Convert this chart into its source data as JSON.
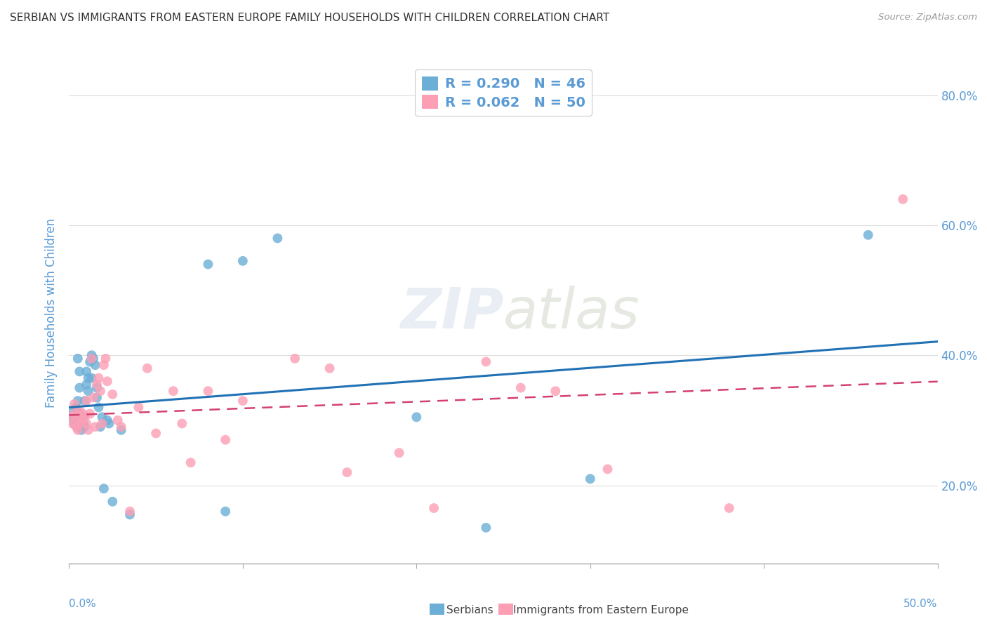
{
  "title": "SERBIAN VS IMMIGRANTS FROM EASTERN EUROPE FAMILY HOUSEHOLDS WITH CHILDREN CORRELATION CHART",
  "source": "Source: ZipAtlas.com",
  "ylabel": "Family Households with Children",
  "watermark": "ZIPatlas",
  "xlim": [
    0.0,
    0.5
  ],
  "ylim": [
    0.08,
    0.85
  ],
  "ytick_vals": [
    0.2,
    0.4,
    0.6,
    0.8
  ],
  "ytick_labels": [
    "20.0%",
    "40.0%",
    "60.0%",
    "80.0%"
  ],
  "serbian_color": "#6baed6",
  "serbian_line_color": "#2171b5",
  "imm_color": "#fc9fb5",
  "imm_line_color": "#d44070",
  "serbian_x": [
    0.001,
    0.002,
    0.003,
    0.003,
    0.004,
    0.004,
    0.005,
    0.005,
    0.005,
    0.006,
    0.006,
    0.006,
    0.007,
    0.007,
    0.008,
    0.008,
    0.009,
    0.009,
    0.01,
    0.01,
    0.011,
    0.011,
    0.012,
    0.013,
    0.013,
    0.014,
    0.015,
    0.016,
    0.016,
    0.017,
    0.018,
    0.019,
    0.02,
    0.022,
    0.023,
    0.025,
    0.03,
    0.035,
    0.08,
    0.09,
    0.1,
    0.12,
    0.2,
    0.24,
    0.3,
    0.46
  ],
  "serbian_y": [
    0.305,
    0.315,
    0.295,
    0.305,
    0.3,
    0.32,
    0.33,
    0.29,
    0.395,
    0.31,
    0.35,
    0.375,
    0.285,
    0.295,
    0.305,
    0.295,
    0.29,
    0.33,
    0.355,
    0.375,
    0.345,
    0.365,
    0.39,
    0.4,
    0.365,
    0.395,
    0.385,
    0.335,
    0.35,
    0.32,
    0.29,
    0.305,
    0.195,
    0.3,
    0.295,
    0.175,
    0.285,
    0.155,
    0.54,
    0.16,
    0.545,
    0.58,
    0.305,
    0.135,
    0.21,
    0.585
  ],
  "imm_x": [
    0.001,
    0.002,
    0.003,
    0.003,
    0.004,
    0.005,
    0.005,
    0.006,
    0.007,
    0.007,
    0.008,
    0.009,
    0.01,
    0.01,
    0.011,
    0.012,
    0.013,
    0.014,
    0.015,
    0.016,
    0.017,
    0.018,
    0.019,
    0.02,
    0.021,
    0.022,
    0.025,
    0.028,
    0.03,
    0.035,
    0.04,
    0.045,
    0.05,
    0.06,
    0.065,
    0.07,
    0.08,
    0.09,
    0.1,
    0.13,
    0.15,
    0.16,
    0.19,
    0.21,
    0.24,
    0.26,
    0.28,
    0.31,
    0.38,
    0.48
  ],
  "imm_y": [
    0.305,
    0.295,
    0.31,
    0.325,
    0.29,
    0.285,
    0.3,
    0.315,
    0.295,
    0.3,
    0.31,
    0.305,
    0.295,
    0.33,
    0.285,
    0.31,
    0.395,
    0.335,
    0.29,
    0.355,
    0.365,
    0.345,
    0.295,
    0.385,
    0.395,
    0.36,
    0.34,
    0.3,
    0.29,
    0.16,
    0.32,
    0.38,
    0.28,
    0.345,
    0.295,
    0.235,
    0.345,
    0.27,
    0.33,
    0.395,
    0.38,
    0.22,
    0.25,
    0.165,
    0.39,
    0.35,
    0.345,
    0.225,
    0.165,
    0.64
  ],
  "background_color": "#ffffff",
  "grid_color": "#dddddd",
  "title_color": "#333333",
  "axis_label_color": "#5b9bd5",
  "legend_label_color": "#5b9bd5"
}
